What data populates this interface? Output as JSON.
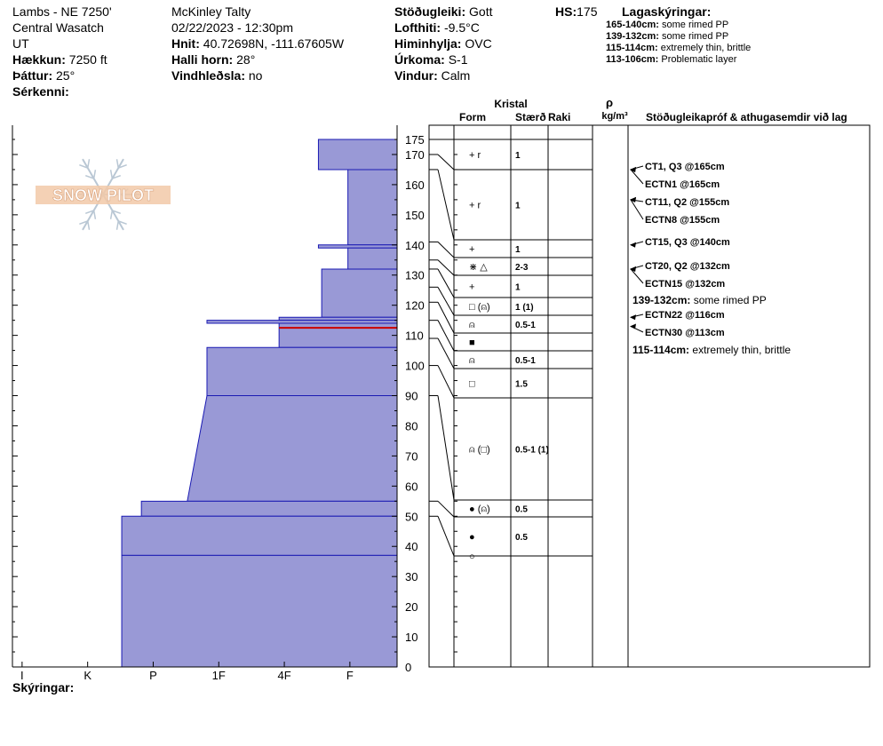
{
  "header": {
    "location": "Lambs - NE 7250'",
    "region": "Central Wasatch",
    "state": "UT",
    "elevation_label": "Hækkun:",
    "elevation_value": "7250 ft",
    "aspect_label": "Þáttur:",
    "aspect_value": "25°",
    "features_label": "Sérkenni:",
    "observer": "McKinley Talty",
    "datetime": "02/22/2023 - 12:30pm",
    "coords_label": "Hnit:",
    "coords_value": "40.72698N, -111.67605W",
    "slope_label": "Halli horn:",
    "slope_value": "28°",
    "wind_loading_label": "Vindhleðsla:",
    "wind_loading_value": "no",
    "stability_label": "Stöðugleiki:",
    "stability_value": "Gott",
    "air_temp_label": "Lofthiti:",
    "air_temp_value": "-9.5°C",
    "sky_label": "Himinhylja:",
    "sky_value": "OVC",
    "precip_label": "Úrkoma:",
    "precip_value": "S-1",
    "wind_label": "Vindur:",
    "wind_value": "Calm",
    "hs_label": "HS:",
    "hs_value": "175"
  },
  "layer_notes_title": "Lagaskýringar:",
  "layer_notes": [
    {
      "range": "165-140cm:",
      "text": "some rimed PP"
    },
    {
      "range": "139-132cm:",
      "text": "some rimed PP"
    },
    {
      "range": "115-114cm:",
      "text": "extremely thin, brittle"
    },
    {
      "range": "113-106cm:",
      "text": "Problematic layer"
    }
  ],
  "logo_text": "SNOW PILOT",
  "remarks_label": "Skýringar:",
  "colors": {
    "layer_fill": "#9999d6",
    "layer_stroke": "#1a1ab3",
    "weak_layer": "#cc0000",
    "grid": "#000000"
  },
  "chart_data": {
    "type": "bar",
    "orientation": "horizontal",
    "hardness_ticks": [
      "I",
      "K",
      "P",
      "1F",
      "4F",
      "F"
    ],
    "depth_ticks": [
      0,
      10,
      20,
      30,
      40,
      50,
      60,
      70,
      80,
      90,
      100,
      110,
      120,
      130,
      140,
      150,
      160,
      170,
      175
    ],
    "ylim": [
      0,
      180
    ],
    "hardness_scale_note": "x value 0=F (right edge) ... 6=I; larger = harder",
    "layers": [
      {
        "top": 175,
        "bottom": 165,
        "hardness_top": 1.2,
        "hardness_bottom": 1.2
      },
      {
        "top": 165,
        "bottom": 140,
        "hardness_top": 0.75,
        "hardness_bottom": 0.75
      },
      {
        "top": 140,
        "bottom": 139,
        "hardness_top": 1.2,
        "hardness_bottom": 1.2
      },
      {
        "top": 139,
        "bottom": 132,
        "hardness_top": 0.75,
        "hardness_bottom": 0.75
      },
      {
        "top": 132,
        "bottom": 116,
        "hardness_top": 1.15,
        "hardness_bottom": 1.15
      },
      {
        "top": 116,
        "bottom": 115,
        "hardness_top": 1.8,
        "hardness_bottom": 1.8
      },
      {
        "top": 115,
        "bottom": 114,
        "hardness_top": 2.9,
        "hardness_bottom": 2.9
      },
      {
        "top": 114,
        "bottom": 106,
        "hardness_top": 1.8,
        "hardness_bottom": 1.8
      },
      {
        "top": 106,
        "bottom": 90,
        "hardness_top": 2.9,
        "hardness_bottom": 2.9
      },
      {
        "top": 90,
        "bottom": 55,
        "hardness_top": 2.9,
        "hardness_bottom": 3.2
      },
      {
        "top": 55,
        "bottom": 50,
        "hardness_top": 3.9,
        "hardness_bottom": 3.9
      },
      {
        "top": 50,
        "bottom": 37,
        "hardness_top": 4.2,
        "hardness_bottom": 4.2
      },
      {
        "top": 37,
        "bottom": 0,
        "hardness_top": 4.2,
        "hardness_bottom": 4.2
      }
    ],
    "weak_layer_depth": 112.5,
    "columns": {
      "crystal_header": "Kristal",
      "form": "Form",
      "size": "Stærð",
      "moisture": "Raki",
      "density_symbol": "ρ",
      "density_unit": "kg/m³",
      "tests_header": "Stöðugleikapróf & athugasemdir við lag"
    },
    "grain_rows": [
      {
        "top": 175,
        "bottom": 170,
        "form": "+ r",
        "size": "1"
      },
      {
        "top": 170,
        "bottom": 165,
        "form": "+ r",
        "size": "1"
      },
      {
        "top": 165,
        "bottom": 141,
        "form": "+",
        "size": "1"
      },
      {
        "top": 141,
        "bottom": 135,
        "form": "⋇ △",
        "size": "2-3"
      },
      {
        "top": 135,
        "bottom": 132,
        "form": "+",
        "size": "1"
      },
      {
        "top": 132,
        "bottom": 126,
        "form": "□ (⍝)",
        "size": "1 (1)"
      },
      {
        "top": 126,
        "bottom": 121,
        "form": "⍝",
        "size": "0.5-1"
      },
      {
        "top": 121,
        "bottom": 115,
        "form": "■",
        "size": ""
      },
      {
        "top": 115,
        "bottom": 109,
        "form": "⍝",
        "size": "0.5-1"
      },
      {
        "top": 109,
        "bottom": 100,
        "form": "□",
        "size": "1.5"
      },
      {
        "top": 100,
        "bottom": 90,
        "form": "⍝ (□)",
        "size": "0.5-1 (1)"
      },
      {
        "top": 90,
        "bottom": 55,
        "form": "● (⍝)",
        "size": "0.5"
      },
      {
        "top": 55,
        "bottom": 50,
        "form": "●",
        "size": "0.5"
      },
      {
        "top": 50,
        "bottom": 37,
        "form": "○",
        "size": ""
      }
    ],
    "tests": [
      {
        "depth": 165,
        "text": "CT1, Q3 @165cm",
        "bold": true
      },
      {
        "depth": 165,
        "text": "ECTN1 @165cm",
        "bold": true
      },
      {
        "depth": 155,
        "text": "CT11, Q2 @155cm",
        "bold": true
      },
      {
        "depth": 155,
        "text": "ECTN8 @155cm",
        "bold": true
      },
      {
        "depth": 140,
        "text": "CT15, Q3 @140cm",
        "bold": true
      },
      {
        "depth": 132,
        "text": "CT20, Q2 @132cm",
        "bold": true
      },
      {
        "depth": 132,
        "text": "ECTN15 @132cm",
        "bold": true
      },
      {
        "depth": null,
        "text": "139-132cm: some rimed PP",
        "bold": false
      },
      {
        "depth": 116,
        "text": "ECTN22 @116cm",
        "bold": true
      },
      {
        "depth": 113,
        "text": "ECTN30 @113cm",
        "bold": true
      },
      {
        "depth": null,
        "text": "115-114cm: extremely thin, brittle",
        "bold": false
      }
    ]
  }
}
